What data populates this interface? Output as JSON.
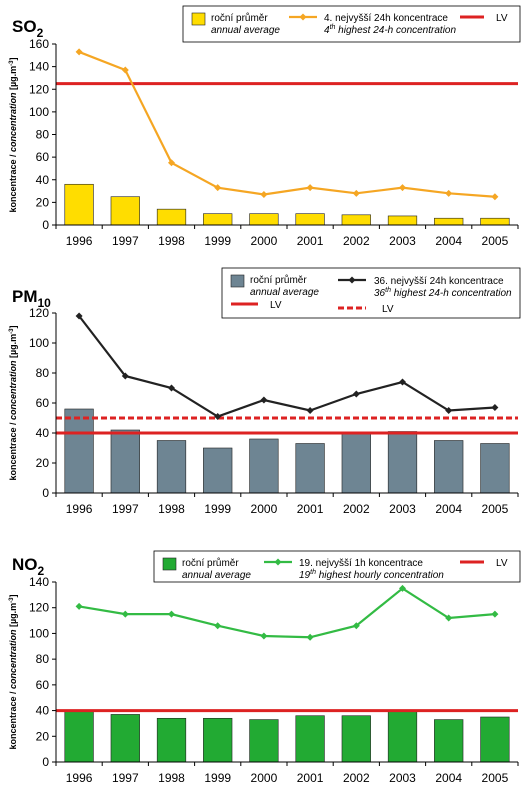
{
  "unit_sup": "-3",
  "chart_data": [
    {
      "type": "bar",
      "title": "SO",
      "title_sub": "2",
      "ylabel_main": "koncentrace / ",
      "ylabel_ital": "concentration",
      "ylabel_unit": " [µg.m",
      "ylabel_end": "]",
      "categories": [
        "1996",
        "1997",
        "1998",
        "1999",
        "2000",
        "2001",
        "2002",
        "2003",
        "2004",
        "2005"
      ],
      "ylim": [
        0,
        160
      ],
      "yticks": [
        "0",
        "20",
        "40",
        "60",
        "80",
        "100",
        "120",
        "140",
        "160"
      ],
      "bar_color": "#FFDD00",
      "line_color": "#F5A623",
      "lv_color": "#DD2222",
      "series": [
        {
          "name_cz": "roční průměr",
          "name_en": "annual average",
          "kind": "bar",
          "values": [
            36,
            25,
            14,
            10,
            10,
            10,
            9,
            8,
            6,
            6
          ]
        },
        {
          "name_cz": "4. nejvyšší 24h koncentrace",
          "name_en": "4th highest 24-h concentration",
          "name_en_pre": "4",
          "name_en_sup": "th",
          "name_en_post": " highest 24-h concentration",
          "kind": "line",
          "values": [
            153,
            137,
            55,
            33,
            27,
            33,
            28,
            33,
            28,
            25
          ]
        }
      ],
      "limit_lines": [
        {
          "name": "LV",
          "value": 125,
          "style": "solid"
        }
      ],
      "legend": {
        "bar_cz": "roční průměr",
        "bar_en": "annual average",
        "line_cz": "4. nejvyšší 24h koncentrace",
        "line_en_pre": "4",
        "line_en_sup": "th",
        "line_en_post": " highest 24-h concentration",
        "lv": "LV"
      }
    },
    {
      "type": "bar",
      "title": "PM",
      "title_sub": "10",
      "ylabel_main": "koncentrace / ",
      "ylabel_ital": "concentration",
      "ylabel_unit": " [µg.m",
      "ylabel_end": "]",
      "categories": [
        "1996",
        "1997",
        "1998",
        "1999",
        "2000",
        "2001",
        "2002",
        "2003",
        "2004",
        "2005"
      ],
      "ylim": [
        0,
        120
      ],
      "yticks": [
        "0",
        "20",
        "40",
        "60",
        "80",
        "100",
        "120"
      ],
      "bar_color": "#6E8593",
      "line_color": "#222222",
      "lv_color": "#DD2222",
      "series": [
        {
          "name_cz": "roční průměr",
          "name_en": "annual average",
          "kind": "bar",
          "values": [
            56,
            42,
            35,
            30,
            36,
            33,
            40,
            41,
            35,
            33
          ]
        },
        {
          "name_cz": "36. nejvyšší 24h koncentrace",
          "name_en": "36th highest 24-h concentration",
          "kind": "line",
          "values": [
            118,
            78,
            70,
            51,
            62,
            55,
            66,
            74,
            55,
            57
          ]
        }
      ],
      "limit_lines": [
        {
          "name": "LV",
          "value": 40,
          "style": "solid"
        },
        {
          "name": "LV",
          "value": 50,
          "style": "dashed"
        }
      ],
      "legend": {
        "bar_cz": "roční průměr",
        "bar_en": "annual average",
        "line_cz": "36. nejvyšší 24h koncentrace",
        "line_en_pre": "36",
        "line_en_sup": "th",
        "line_en_post": " highest 24-h concentration",
        "lv": "LV",
        "lv2": "LV"
      }
    },
    {
      "type": "bar",
      "title": "NO",
      "title_sub": "2",
      "ylabel_main": "koncentrace / ",
      "ylabel_ital": "concentration",
      "ylabel_unit": " [µg.m",
      "ylabel_end": "]",
      "categories": [
        "1996",
        "1997",
        "1998",
        "1999",
        "2000",
        "2001",
        "2002",
        "2003",
        "2004",
        "2005"
      ],
      "ylim": [
        0,
        140
      ],
      "yticks": [
        "0",
        "20",
        "40",
        "60",
        "80",
        "100",
        "120",
        "140"
      ],
      "bar_color": "#22AA33",
      "line_color": "#33BB44",
      "lv_color": "#DD2222",
      "series": [
        {
          "name_cz": "roční průměr",
          "name_en": "annual average",
          "kind": "bar",
          "values": [
            40,
            37,
            34,
            34,
            33,
            36,
            36,
            40,
            33,
            35
          ]
        },
        {
          "name_cz": "19. nejvyšší 1h koncentrace",
          "name_en": "19th highest hourly concentration",
          "kind": "line",
          "values": [
            121,
            115,
            115,
            106,
            98,
            97,
            106,
            135,
            112,
            115
          ]
        }
      ],
      "limit_lines": [
        {
          "name": "LV",
          "value": 40,
          "style": "solid"
        }
      ],
      "legend": {
        "bar_cz": "roční průměr",
        "bar_en": "annual average",
        "line_cz": "19. nejvyšší 1h koncentrace",
        "line_en_pre": "19",
        "line_en_sup": "th",
        "line_en_post": " highest hourly concentration",
        "lv": "LV"
      }
    }
  ]
}
